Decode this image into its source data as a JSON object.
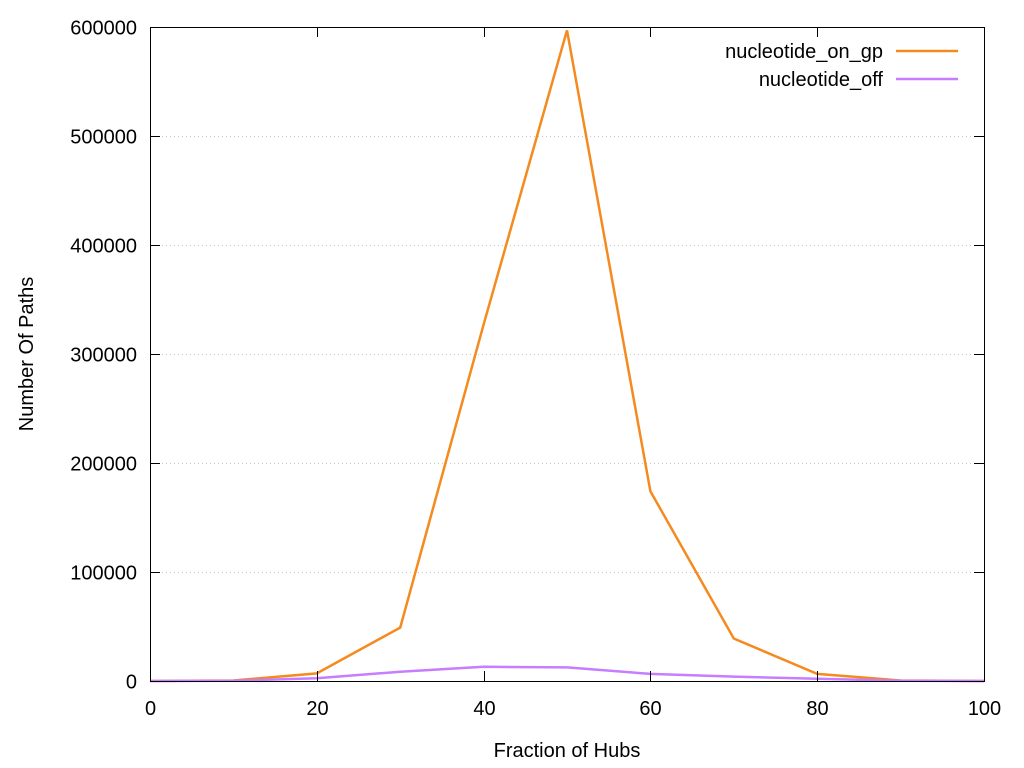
{
  "chart_data": {
    "type": "line",
    "title": "",
    "xlabel": "Fraction of Hubs",
    "ylabel": "Number Of Paths",
    "xlim": [
      0,
      100
    ],
    "ylim": [
      0,
      600000
    ],
    "xticks": [
      0,
      20,
      40,
      60,
      80,
      100
    ],
    "yticks": [
      0,
      100000,
      200000,
      300000,
      400000,
      500000,
      600000
    ],
    "grid": "horizontal-dotted",
    "legend_position": "top-right",
    "x": [
      0,
      10,
      20,
      30,
      40,
      50,
      60,
      70,
      80,
      90,
      100
    ],
    "series": [
      {
        "name": "nucleotide_on_gp",
        "color": "#f58a1f",
        "values": [
          0,
          500,
          7000,
          49000,
          327000,
          597000,
          174000,
          39000,
          6500,
          500,
          0
        ]
      },
      {
        "name": "nucleotide_off",
        "color": "#c77dff",
        "values": [
          0,
          200,
          2500,
          8500,
          13000,
          12500,
          6500,
          4000,
          2000,
          300,
          0
        ]
      }
    ]
  }
}
